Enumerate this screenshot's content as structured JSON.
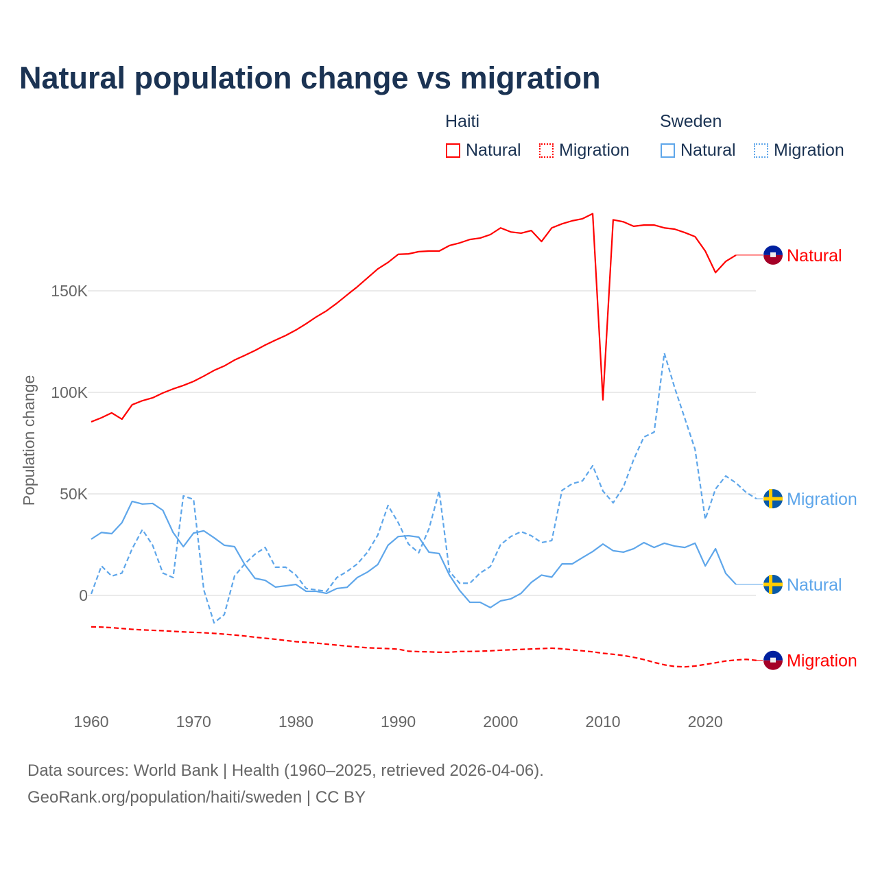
{
  "chart_data": {
    "type": "line",
    "title": "Natural population change vs migration",
    "ylabel": "Population change",
    "xlabel": "",
    "xlim": [
      1960,
      2025
    ],
    "ylim": [
      -50000,
      190000
    ],
    "yticks": [
      {
        "v": 0,
        "label": "0"
      },
      {
        "v": 50000,
        "label": "50K"
      },
      {
        "v": 100000,
        "label": "100K"
      },
      {
        "v": 150000,
        "label": "150K"
      }
    ],
    "xticks": [
      1960,
      1970,
      1980,
      1990,
      2000,
      2010,
      2020
    ],
    "legend": {
      "placement": "top-right",
      "groups": [
        {
          "name": "Haiti",
          "items": [
            "Natural",
            "Migration"
          ]
        },
        {
          "name": "Sweden",
          "items": [
            "Natural",
            "Migration"
          ]
        }
      ]
    },
    "series": [
      {
        "name": "Haiti Natural",
        "label": "Natural",
        "color": "#ff0000",
        "dash": false,
        "start": 1960,
        "values": [
          85.5,
          87.5,
          89.9,
          86.8,
          93.9,
          95.9,
          97.3,
          99.7,
          101.7,
          103.4,
          105.4,
          108,
          110.8,
          113,
          115.9,
          118.2,
          120.6,
          123.3,
          125.7,
          128,
          130.7,
          133.8,
          137.2,
          140.2,
          143.9,
          148,
          152,
          156.4,
          160.8,
          164,
          168,
          168.2,
          169.3,
          169.6,
          169.6,
          172.3,
          173.6,
          175.3,
          176,
          177.7,
          181,
          179,
          178.4,
          179.7,
          174.3,
          181,
          183,
          184.5,
          185.5,
          188,
          96.3,
          185,
          184,
          181.8,
          182.4,
          182.4,
          181,
          180.4,
          178.7,
          176.7,
          169.6,
          159,
          164.5,
          167.6
        ]
      },
      {
        "name": "Haiti Migration",
        "label": "Migration",
        "color": "#ff0000",
        "dash": true,
        "start": 1960,
        "values": [
          -15.5,
          -15.6,
          -15.9,
          -16.3,
          -16.7,
          -17.0,
          -17.2,
          -17.4,
          -17.7,
          -18.0,
          -18.2,
          -18.4,
          -18.7,
          -19.1,
          -19.5,
          -20.0,
          -20.6,
          -21.1,
          -21.6,
          -22.2,
          -22.8,
          -23.1,
          -23.5,
          -24.0,
          -24.5,
          -25.0,
          -25.4,
          -25.8,
          -26.0,
          -26.2,
          -26.5,
          -27.5,
          -27.7,
          -27.8,
          -28.0,
          -28.0,
          -27.6,
          -27.6,
          -27.5,
          -27.3,
          -27.0,
          -26.8,
          -26.6,
          -26.4,
          -26.2,
          -26.0,
          -26.3,
          -26.8,
          -27.3,
          -27.8,
          -28.5,
          -29.0,
          -29.6,
          -30.5,
          -31.6,
          -33.0,
          -34.2,
          -35.0,
          -35.2,
          -34.8,
          -34.0,
          -33.2,
          -32.3,
          -31.8,
          -31.5,
          -32.0
        ]
      },
      {
        "name": "Sweden Natural",
        "label": "Natural",
        "color": "#5ea6ea",
        "dash": false,
        "start": 1960,
        "values": [
          27.7,
          31,
          30.4,
          35.8,
          46.3,
          45,
          45.3,
          41.9,
          31,
          24,
          30.7,
          31.8,
          28.4,
          24.7,
          24,
          15.2,
          8.4,
          7.4,
          4.1,
          4.7,
          5.4,
          2,
          2,
          1,
          3.4,
          4,
          8.8,
          11.5,
          15.2,
          24.7,
          29,
          29.4,
          28.7,
          21.3,
          20.6,
          10,
          2.4,
          -3.4,
          -3.4,
          -6,
          -2.7,
          -1.7,
          1,
          6.4,
          10,
          9,
          15.5,
          15.5,
          18.6,
          21.6,
          25.3,
          22,
          21.3,
          23,
          26,
          23.6,
          25.7,
          24.3,
          23.6,
          25.7,
          14.5,
          23,
          10.8,
          5.4
        ]
      },
      {
        "name": "Sweden Migration",
        "label": "Migration",
        "color": "#5ea6ea",
        "dash": true,
        "start": 1960,
        "values": [
          0.7,
          14.5,
          9.5,
          11,
          23,
          32.4,
          24.7,
          11,
          8.8,
          49,
          47.3,
          2.7,
          -13.5,
          -9.5,
          9.5,
          15.5,
          20.3,
          23.6,
          13.9,
          13.9,
          10,
          3.4,
          2.7,
          2,
          8.8,
          11.8,
          15.5,
          21.3,
          29.7,
          44.3,
          35.8,
          25.3,
          21,
          32.8,
          51.4,
          11.8,
          6,
          6,
          11,
          14.2,
          25,
          29,
          31.4,
          29.4,
          26,
          27,
          51.7,
          55,
          56.4,
          63.9,
          51.4,
          45.6,
          53.4,
          66.9,
          78,
          80.4,
          119.3,
          102.4,
          87.2,
          72,
          37.5,
          52.4,
          58.8,
          55.4,
          50.7,
          47.6
        ]
      }
    ],
    "value_units": "thousands"
  },
  "footer": {
    "line1": "Data sources: World Bank | Health (1960–2025, retrieved 2026-04-06).",
    "line2": "GeoRank.org/population/haiti/sweden | CC BY"
  }
}
